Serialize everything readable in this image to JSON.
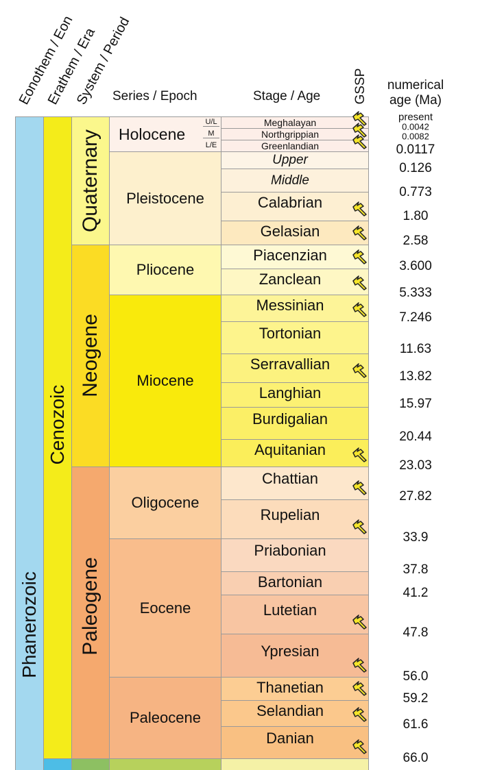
{
  "headers": {
    "eon": "Eonothem / Eon",
    "era": "Erathem / Era",
    "period": "System / Period",
    "epoch": "Series / Epoch",
    "stage": "Stage / Age",
    "gssp": "GSSP",
    "age": "numerical age (Ma)"
  },
  "eons": [
    {
      "name": "Phanerozoic",
      "color": "#a3d8ef"
    }
  ],
  "eras": [
    {
      "name": "Cenozoic",
      "color": "#f4ec1a"
    }
  ],
  "periods": [
    {
      "name": "Quaternary",
      "color": "#fbf78c"
    },
    {
      "name": "Neogene",
      "color": "#fbdc24"
    },
    {
      "name": "Paleogene",
      "color": "#f5a96e"
    }
  ],
  "epochs": [
    {
      "name": "Holocene",
      "color": "#fdf1ea",
      "subdivisions": [
        "U/L",
        "M",
        "L/E"
      ]
    },
    {
      "name": "Pleistocene",
      "color": "#fdf0cd"
    },
    {
      "name": "Pliocene",
      "color": "#fef8b0"
    },
    {
      "name": "Miocene",
      "color": "#f9ea0c"
    },
    {
      "name": "Oligocene",
      "color": "#fbcfa0"
    },
    {
      "name": "Eocene",
      "color": "#f9bd8c"
    },
    {
      "name": "Paleocene",
      "color": "#f6b483"
    }
  ],
  "stages": [
    {
      "name": "Meghalayan",
      "gssp": true,
      "color": "#fdeee8"
    },
    {
      "name": "Northgrippian",
      "gssp": true,
      "color": "#fdeee8"
    },
    {
      "name": "Greenlandian",
      "gssp": true,
      "color": "#fdeee8"
    },
    {
      "name": "Upper",
      "gssp": false,
      "italic": true,
      "color": "#fdf4e6"
    },
    {
      "name": "Middle",
      "gssp": false,
      "italic": true,
      "color": "#fdf1dc"
    },
    {
      "name": "Calabrian",
      "gssp": true,
      "color": "#fdefd2"
    },
    {
      "name": "Gelasian",
      "gssp": true,
      "color": "#fde9bf"
    },
    {
      "name": "Piacenzian",
      "gssp": true,
      "color": "#fef9d4"
    },
    {
      "name": "Zanclean",
      "gssp": true,
      "color": "#fef7c4"
    },
    {
      "name": "Messinian",
      "gssp": true,
      "color": "#fdf498"
    },
    {
      "name": "Tortonian",
      "gssp": false,
      "color": "#fdf48c"
    },
    {
      "name": "Serravallian",
      "gssp": true,
      "color": "#fcf27f"
    },
    {
      "name": "Langhian",
      "gssp": false,
      "color": "#fcf173"
    },
    {
      "name": "Burdigalian",
      "gssp": false,
      "color": "#fbef66"
    },
    {
      "name": "Aquitanian",
      "gssp": true,
      "color": "#fbee5a"
    },
    {
      "name": "Chattian",
      "gssp": true,
      "color": "#fde7cc"
    },
    {
      "name": "Rupelian",
      "gssp": true,
      "color": "#fcdcbb"
    },
    {
      "name": "Priabonian",
      "gssp": false,
      "color": "#fad9c0"
    },
    {
      "name": "Bartonian",
      "gssp": false,
      "color": "#f9cfb1"
    },
    {
      "name": "Lutetian",
      "gssp": true,
      "color": "#f8c5a2"
    },
    {
      "name": "Ypresian",
      "gssp": true,
      "color": "#f6bb95"
    },
    {
      "name": "Thanetian",
      "gssp": true,
      "color": "#fccd93"
    },
    {
      "name": "Selandian",
      "gssp": true,
      "color": "#fbc88c"
    },
    {
      "name": "Danian",
      "gssp": true,
      "color": "#f9c082"
    }
  ],
  "below": {
    "eon": "#a3d8ef",
    "era": "#4dbde6",
    "period": "#8dc062",
    "epoch": "#b7d15c",
    "stage": "#f5f1a6"
  },
  "ages": [
    "present",
    "0.0042",
    "0.0082",
    "0.0117",
    "0.126",
    "0.773",
    "1.80",
    "2.58",
    "3.600",
    "5.333",
    "7.246",
    "11.63",
    "13.82",
    "15.97",
    "20.44",
    "23.03",
    "27.82",
    "33.9",
    "37.8",
    "41.2",
    "47.8",
    "56.0",
    "59.2",
    "61.6",
    "66.0"
  ]
}
